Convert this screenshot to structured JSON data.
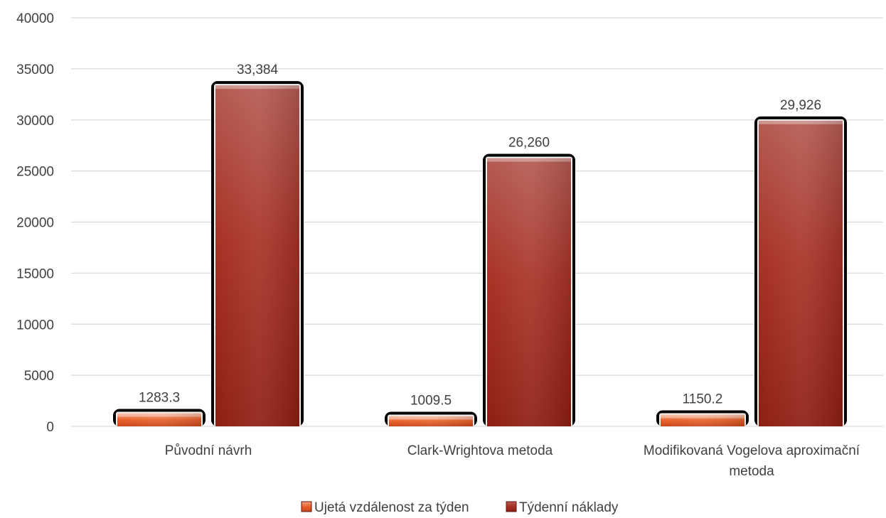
{
  "chart_data": {
    "type": "bar",
    "title": "",
    "xlabel": "",
    "ylabel": "",
    "ylim": [
      0,
      40000
    ],
    "yticks": [
      0,
      5000,
      10000,
      15000,
      20000,
      25000,
      30000,
      35000,
      40000
    ],
    "grid": true,
    "legend_position": "bottom",
    "categories": [
      [
        "Původní návrh"
      ],
      [
        "Clark-Wrightova metoda"
      ],
      [
        "Modifikovaná Vogelova aproximační",
        "metoda"
      ]
    ],
    "series": [
      {
        "name": "Ujetá vzdálenost za týden",
        "values": [
          1283.3,
          1009.5,
          1150.2
        ],
        "labels": [
          "1283.3",
          "1009.5",
          "1150.2"
        ],
        "color": "#E8612C"
      },
      {
        "name": "Týdenní náklady",
        "values": [
          33384,
          26260,
          29926
        ],
        "labels": [
          "33,384",
          "26,260",
          "29,926"
        ],
        "color": "#A8291C"
      }
    ]
  }
}
